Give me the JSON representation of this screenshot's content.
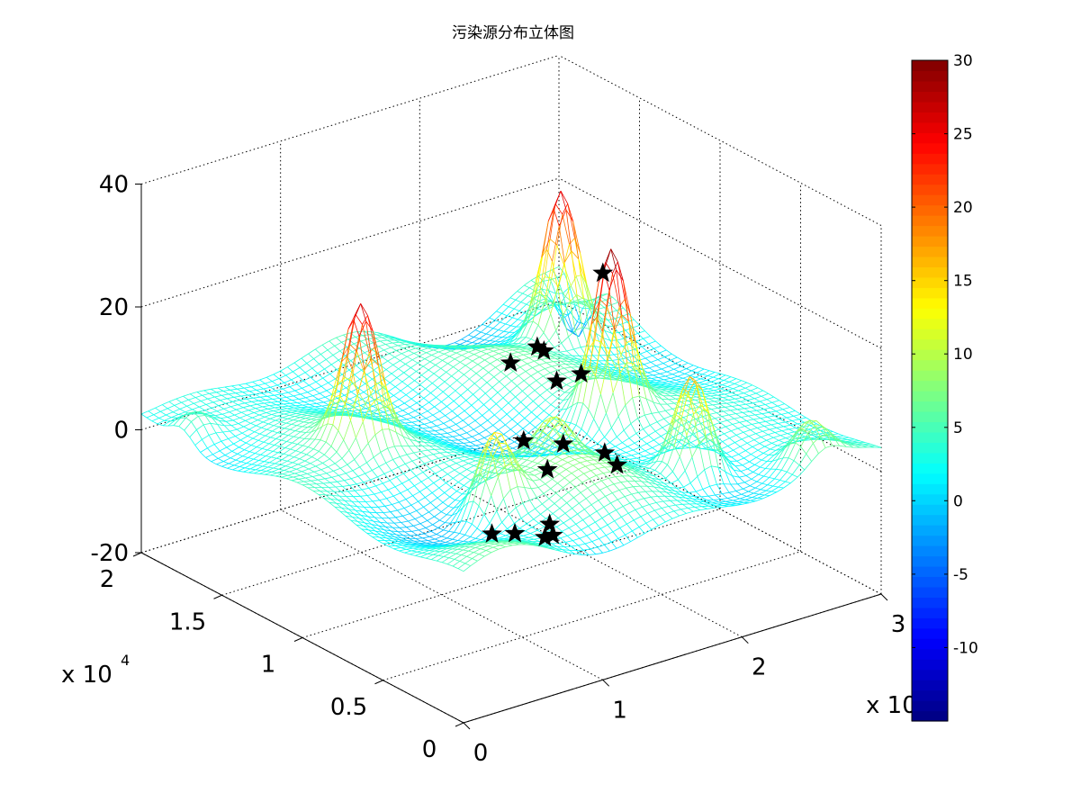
{
  "chart_data": {
    "type": "surface3d",
    "title": "污染源分布立体图",
    "x_axis": {
      "ticks": [
        0,
        1,
        2,
        3
      ],
      "tick_labels": [
        "0",
        "1",
        "2",
        "3"
      ],
      "exponent_label": "x 10",
      "range": [
        0,
        30000
      ]
    },
    "y_axis": {
      "ticks": [
        0,
        0.5,
        1,
        1.5,
        2
      ],
      "tick_labels": [
        "0",
        "0.5",
        "1",
        "1.5",
        "2"
      ],
      "exponent_label": "x 10",
      "exponent_power": "4",
      "range": [
        0,
        20000
      ]
    },
    "z_axis": {
      "ticks": [
        -20,
        0,
        20,
        40
      ],
      "tick_labels": [
        "-20",
        "0",
        "20",
        "40"
      ],
      "range": [
        -20,
        40
      ]
    },
    "colorbar": {
      "colormap": "jet",
      "range": [
        -15,
        30
      ],
      "ticks": [
        30,
        25,
        20,
        15,
        10,
        5,
        0,
        -5,
        -10
      ],
      "tick_labels": [
        "30",
        "25",
        "20",
        "15",
        "10",
        "5",
        "0",
        "-5",
        "-10"
      ]
    },
    "grid": true,
    "surface": {
      "style": "mesh",
      "base_level": 3,
      "peaks": [
        {
          "x": 21000,
          "y": 9000,
          "z": 29
        },
        {
          "x": 25500,
          "y": 16000,
          "z": 27
        },
        {
          "x": 20500,
          "y": 3500,
          "z": 20
        },
        {
          "x": 6500,
          "y": 12000,
          "z": 24
        },
        {
          "x": 8000,
          "y": 5000,
          "z": 16
        },
        {
          "x": 1000,
          "y": 17500,
          "z": 7
        },
        {
          "x": 26000,
          "y": 1000,
          "z": 9
        },
        {
          "x": 14000,
          "y": 6500,
          "z": 9
        }
      ],
      "trough": {
        "x": 29500,
        "y": 18500,
        "z": -7
      }
    },
    "markers": {
      "symbol": "star",
      "color": "#000000",
      "points": [
        [
          5510,
          3000
        ],
        [
          6000,
          2000
        ],
        [
          7000,
          1000
        ],
        [
          7800,
          1200
        ],
        [
          8500,
          2000
        ],
        [
          11000,
          4300
        ],
        [
          14500,
          3000
        ],
        [
          15000,
          4200
        ],
        [
          13000,
          7500
        ],
        [
          17000,
          8500
        ],
        [
          20000,
          11500
        ],
        [
          19000,
          13500
        ],
        [
          21500,
          14000
        ],
        [
          21400,
          13500
        ],
        [
          21000,
          9500
        ],
        [
          20600,
          10500
        ]
      ]
    }
  }
}
